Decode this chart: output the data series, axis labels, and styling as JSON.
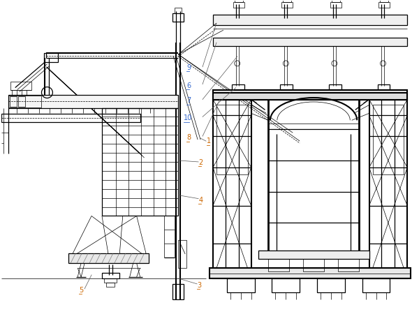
{
  "bg_color": "#ffffff",
  "lc": "#000000",
  "orange": "#cc6600",
  "blue": "#3366cc",
  "lw_thin": 0.5,
  "lw_med": 0.9,
  "lw_thick": 1.5,
  "lw_xthick": 2.0
}
